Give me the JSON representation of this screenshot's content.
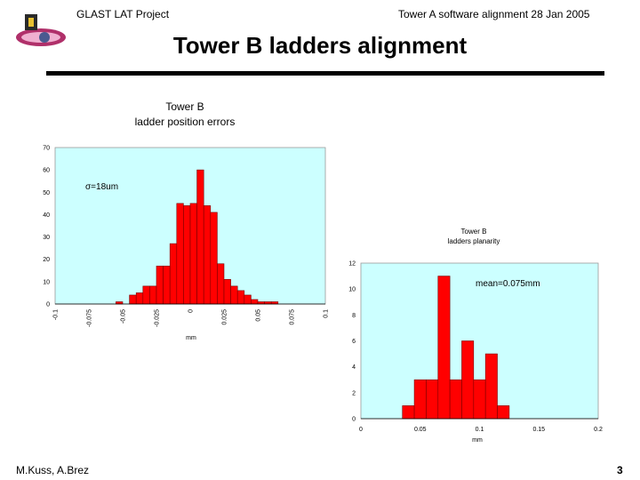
{
  "header": {
    "project": "GLAST LAT Project",
    "subject": "Tower A software alignment 28 Jan 2005"
  },
  "slide": {
    "title": "Tower B ladders alignment"
  },
  "footer": {
    "authors": "M.Kuss, A.Brez",
    "page_number": "3"
  },
  "colors": {
    "plot_bg": "#ccffff",
    "bar_fill": "#ff0000",
    "bar_stroke": "#7a0000"
  },
  "chart_data": [
    {
      "type": "bar",
      "title_lines": [
        "Tower B",
        "ladder position errors"
      ],
      "annotation": "σ=18um",
      "xlabel": "mm",
      "ylabel": "",
      "xlim": [
        -0.1,
        0.1
      ],
      "ylim": [
        0,
        70
      ],
      "bin_width": 0.005,
      "x_ticks": [
        "-0.1",
        "-0.075",
        "-0.05",
        "-0.025",
        "0",
        "0.025",
        "0.05",
        "0.075",
        "0.1"
      ],
      "y_ticks": [
        "0",
        "10",
        "20",
        "30",
        "40",
        "50",
        "60",
        "70"
      ],
      "bins": [
        -0.07,
        -0.065,
        -0.06,
        -0.055,
        -0.05,
        -0.045,
        -0.04,
        -0.035,
        -0.03,
        -0.025,
        -0.02,
        -0.015,
        -0.01,
        -0.005,
        0,
        0.005,
        0.01,
        0.015,
        0.02,
        0.025,
        0.03,
        0.035,
        0.04,
        0.045,
        0.05,
        0.055,
        0.06,
        0.065
      ],
      "values": [
        0,
        0,
        0,
        1,
        0,
        4,
        5,
        8,
        8,
        17,
        17,
        27,
        45,
        44,
        45,
        60,
        44,
        41,
        18,
        11,
        8,
        6,
        4,
        2,
        1,
        1,
        1,
        0
      ],
      "grid": false
    },
    {
      "type": "bar",
      "title_lines": [
        "Tower B",
        "ladders planarity"
      ],
      "annotation": "mean=0.075mm",
      "xlabel": "mm",
      "ylabel": "",
      "xlim": [
        0,
        0.2
      ],
      "ylim": [
        0,
        12
      ],
      "bin_width": 0.01,
      "x_ticks": [
        "0",
        "0.05",
        "0.1",
        "0.15",
        "0.2"
      ],
      "y_ticks": [
        "0",
        "2",
        "4",
        "6",
        "8",
        "10",
        "12"
      ],
      "bins": [
        0.035,
        0.045,
        0.055,
        0.065,
        0.075,
        0.085,
        0.095,
        0.105,
        0.115
      ],
      "values": [
        1,
        3,
        3,
        11,
        3,
        6,
        3,
        5,
        1
      ],
      "grid": false
    }
  ]
}
